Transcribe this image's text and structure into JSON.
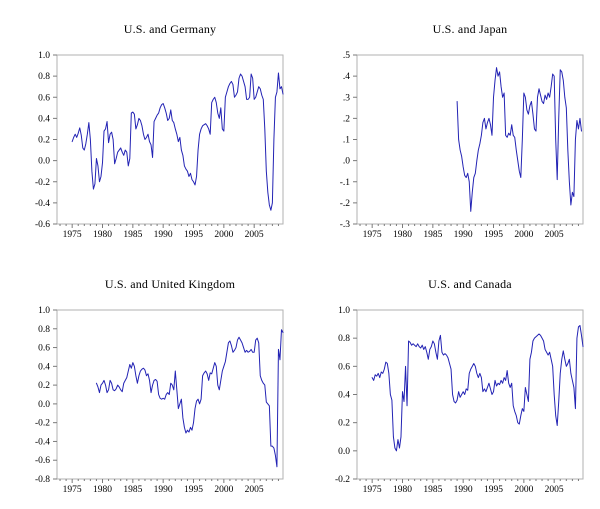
{
  "figure": {
    "background": "#ffffff",
    "line_color": "#2323b4",
    "frame_color": "#b2b2b2",
    "tick_color": "#7a7a7a",
    "text_color": "#000000"
  },
  "chart_data": [
    {
      "type": "line",
      "title": "U.S. and Germany",
      "xlabel": "",
      "ylabel": "",
      "legend": "none",
      "grid": false,
      "xlim": [
        1972.5,
        2009.75
      ],
      "ylim": [
        -0.6,
        1.0
      ],
      "xticks": [
        1975,
        1980,
        1985,
        1990,
        1995,
        2000,
        2005
      ],
      "ytick_values": [
        1.0,
        0.8,
        0.6,
        0.4,
        0.2,
        0.0,
        -0.2,
        -0.4,
        -0.6
      ],
      "ytick_labels": [
        "1.0",
        "0.8",
        "0.6",
        "0.4",
        "0.2",
        "0.0",
        "-0.2",
        "-0.4",
        "-0.6"
      ],
      "x_start": 1975.0,
      "x_step": 0.25,
      "values": [
        0.18,
        0.22,
        0.25,
        0.22,
        0.26,
        0.31,
        0.24,
        0.12,
        0.1,
        0.16,
        0.25,
        0.36,
        0.2,
        -0.1,
        -0.27,
        -0.22,
        0.02,
        -0.05,
        -0.2,
        -0.15,
        -0.02,
        0.28,
        0.3,
        0.37,
        0.17,
        0.25,
        0.27,
        0.2,
        -0.03,
        0.02,
        0.08,
        0.1,
        0.12,
        0.08,
        0.05,
        0.1,
        0.08,
        -0.05,
        0.02,
        0.45,
        0.46,
        0.44,
        0.3,
        0.34,
        0.4,
        0.38,
        0.33,
        0.25,
        0.2,
        0.22,
        0.25,
        0.18,
        0.15,
        0.03,
        0.37,
        0.4,
        0.43,
        0.45,
        0.5,
        0.53,
        0.54,
        0.5,
        0.45,
        0.38,
        0.4,
        0.48,
        0.38,
        0.36,
        0.3,
        0.25,
        0.18,
        0.22,
        0.1,
        0.05,
        -0.05,
        -0.08,
        -0.1,
        -0.15,
        -0.12,
        -0.18,
        -0.2,
        -0.23,
        -0.15,
        0.1,
        0.25,
        0.3,
        0.33,
        0.34,
        0.35,
        0.33,
        0.3,
        0.25,
        0.55,
        0.58,
        0.6,
        0.55,
        0.45,
        0.4,
        0.5,
        0.3,
        0.28,
        0.6,
        0.65,
        0.7,
        0.73,
        0.75,
        0.72,
        0.6,
        0.62,
        0.65,
        0.78,
        0.82,
        0.8,
        0.75,
        0.7,
        0.58,
        0.58,
        0.6,
        0.82,
        0.78,
        0.58,
        0.6,
        0.65,
        0.7,
        0.68,
        0.62,
        0.58,
        0.3,
        -0.1,
        -0.3,
        -0.42,
        -0.47,
        -0.4,
        0.2,
        0.6,
        0.65,
        0.83,
        0.68,
        0.7,
        0.63
      ]
    },
    {
      "type": "line",
      "title": "U.S. and Japan",
      "xlabel": "",
      "ylabel": "",
      "legend": "none",
      "grid": false,
      "xlim": [
        1972.5,
        2009.75
      ],
      "ylim": [
        -0.3,
        0.5
      ],
      "xticks": [
        1975,
        1980,
        1985,
        1990,
        1995,
        2000,
        2005
      ],
      "ytick_values": [
        0.5,
        0.4,
        0.3,
        0.2,
        0.1,
        0.0,
        -0.1,
        -0.2,
        -0.3
      ],
      "ytick_labels": [
        ".5",
        ".4",
        ".3",
        ".2",
        ".1",
        ".0",
        "-.1",
        "-.2",
        "-.3"
      ],
      "x_start": 1989.0,
      "x_step": 0.25,
      "values": [
        0.28,
        0.1,
        0.05,
        0.02,
        -0.03,
        -0.07,
        -0.08,
        -0.06,
        -0.1,
        -0.24,
        -0.15,
        -0.08,
        -0.06,
        0.0,
        0.05,
        0.08,
        0.12,
        0.18,
        0.2,
        0.15,
        0.18,
        0.2,
        0.17,
        0.12,
        0.3,
        0.38,
        0.44,
        0.4,
        0.42,
        0.35,
        0.3,
        0.32,
        0.12,
        0.11,
        0.13,
        0.12,
        0.17,
        0.12,
        0.11,
        0.05,
        0.0,
        -0.05,
        -0.08,
        0.1,
        0.32,
        0.3,
        0.24,
        0.22,
        0.26,
        0.28,
        0.22,
        0.15,
        0.14,
        0.3,
        0.34,
        0.31,
        0.28,
        0.27,
        0.31,
        0.29,
        0.32,
        0.3,
        0.35,
        0.41,
        0.4,
        0.1,
        -0.09,
        0.2,
        0.43,
        0.42,
        0.38,
        0.3,
        0.25,
        0.05,
        -0.1,
        -0.21,
        -0.15,
        -0.17,
        0.1,
        0.19,
        0.15,
        0.2,
        0.14
      ]
    },
    {
      "type": "line",
      "title": "U.S. and United Kingdom",
      "xlabel": "",
      "ylabel": "",
      "legend": "none",
      "grid": false,
      "xlim": [
        1972.5,
        2009.75
      ],
      "ylim": [
        -0.8,
        1.0
      ],
      "xticks": [
        1975,
        1980,
        1985,
        1990,
        1995,
        2000,
        2005
      ],
      "ytick_values": [
        1.0,
        0.8,
        0.6,
        0.4,
        0.2,
        0.0,
        -0.2,
        -0.4,
        -0.6,
        -0.8
      ],
      "ytick_labels": [
        "1.0",
        "0.8",
        "0.6",
        "0.4",
        "0.2",
        "0.0",
        "-0.2",
        "-0.4",
        "-0.6",
        "-0.8"
      ],
      "x_start": 1979.0,
      "x_step": 0.25,
      "values": [
        0.22,
        0.18,
        0.12,
        0.2,
        0.22,
        0.25,
        0.2,
        0.12,
        0.15,
        0.25,
        0.22,
        0.15,
        0.14,
        0.16,
        0.2,
        0.18,
        0.15,
        0.13,
        0.22,
        0.25,
        0.28,
        0.35,
        0.42,
        0.38,
        0.44,
        0.4,
        0.3,
        0.22,
        0.3,
        0.35,
        0.37,
        0.38,
        0.36,
        0.3,
        0.32,
        0.25,
        0.12,
        0.2,
        0.25,
        0.26,
        0.24,
        0.1,
        0.06,
        0.05,
        0.06,
        0.05,
        0.1,
        0.12,
        0.1,
        0.22,
        0.2,
        0.15,
        0.35,
        0.15,
        -0.05,
        0.0,
        0.05,
        -0.15,
        -0.25,
        -0.31,
        -0.28,
        -0.3,
        -0.25,
        -0.28,
        -0.2,
        -0.05,
        0.03,
        0.05,
        0.0,
        0.05,
        0.3,
        0.33,
        0.35,
        0.32,
        0.25,
        0.33,
        0.32,
        0.38,
        0.44,
        0.4,
        0.2,
        0.15,
        0.25,
        0.35,
        0.4,
        0.45,
        0.55,
        0.65,
        0.67,
        0.62,
        0.55,
        0.57,
        0.6,
        0.68,
        0.71,
        0.68,
        0.65,
        0.6,
        0.55,
        0.57,
        0.55,
        0.56,
        0.58,
        0.55,
        0.55,
        0.68,
        0.7,
        0.65,
        0.3,
        0.25,
        0.22,
        0.2,
        0.02,
        0.0,
        -0.02,
        -0.45,
        -0.45,
        -0.47,
        -0.55,
        -0.67,
        0.58,
        0.47,
        0.79,
        0.76
      ]
    },
    {
      "type": "line",
      "title": "U.S. and Canada",
      "xlabel": "",
      "ylabel": "",
      "legend": "none",
      "grid": false,
      "xlim": [
        1972.5,
        2009.75
      ],
      "ylim": [
        -0.2,
        1.0
      ],
      "xticks": [
        1975,
        1980,
        1985,
        1990,
        1995,
        2000,
        2005
      ],
      "ytick_values": [
        1.0,
        0.8,
        0.6,
        0.4,
        0.2,
        0.0,
        -0.2
      ],
      "ytick_labels": [
        "1.0",
        "0.8",
        "0.6",
        "0.4",
        "0.2",
        "0.0",
        "-0.2"
      ],
      "x_start": 1975.0,
      "x_step": 0.25,
      "values": [
        0.52,
        0.5,
        0.54,
        0.53,
        0.55,
        0.52,
        0.56,
        0.55,
        0.58,
        0.63,
        0.62,
        0.55,
        0.4,
        0.36,
        0.1,
        0.02,
        0.0,
        0.08,
        0.02,
        0.1,
        0.42,
        0.35,
        0.6,
        0.32,
        0.78,
        0.77,
        0.75,
        0.76,
        0.75,
        0.74,
        0.76,
        0.74,
        0.73,
        0.75,
        0.72,
        0.74,
        0.7,
        0.65,
        0.72,
        0.74,
        0.78,
        0.76,
        0.7,
        0.65,
        0.78,
        0.82,
        0.7,
        0.68,
        0.69,
        0.68,
        0.66,
        0.62,
        0.58,
        0.4,
        0.35,
        0.34,
        0.36,
        0.42,
        0.38,
        0.4,
        0.42,
        0.4,
        0.44,
        0.43,
        0.55,
        0.58,
        0.6,
        0.62,
        0.6,
        0.55,
        0.52,
        0.55,
        0.52,
        0.42,
        0.44,
        0.42,
        0.45,
        0.48,
        0.44,
        0.4,
        0.42,
        0.5,
        0.46,
        0.48,
        0.47,
        0.5,
        0.48,
        0.52,
        0.5,
        0.57,
        0.48,
        0.45,
        0.48,
        0.32,
        0.28,
        0.25,
        0.2,
        0.19,
        0.25,
        0.3,
        0.28,
        0.45,
        0.4,
        0.35,
        0.65,
        0.7,
        0.78,
        0.8,
        0.81,
        0.82,
        0.83,
        0.82,
        0.8,
        0.78,
        0.72,
        0.7,
        0.68,
        0.7,
        0.65,
        0.6,
        0.4,
        0.25,
        0.18,
        0.35,
        0.55,
        0.65,
        0.71,
        0.65,
        0.6,
        0.62,
        0.65,
        0.55,
        0.5,
        0.45,
        0.3,
        0.8,
        0.88,
        0.89,
        0.82,
        0.74
      ]
    }
  ]
}
